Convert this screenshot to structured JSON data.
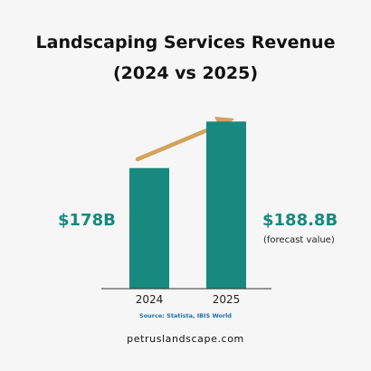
{
  "title_line1": "Landscaping Services Revenue",
  "title_line2": "(2024 vs 2025)",
  "left_value_label": "$178B",
  "right_value_label": "$188.8B",
  "right_value_note": "(forecast value)",
  "source_text": "Source: Statista, IBIS World",
  "website_text": "petruslandscape.com",
  "colors": {
    "bar": "#17897e",
    "value_text": "#17897e",
    "arrow": "#d3a25b",
    "axis": "#333333",
    "source_text": "#1b6fa6"
  },
  "icons": {
    "trend_arrow": "arrow-up-right-icon"
  },
  "chart_data": {
    "type": "bar",
    "title": "Landscaping Services Revenue (2024 vs 2025)",
    "categories": [
      "2024",
      "2025"
    ],
    "values": [
      178,
      188.8
    ],
    "value_labels": [
      "$178B",
      "$188.8B"
    ],
    "annotations": [
      "(forecast value)"
    ],
    "xlabel": "",
    "ylabel": "",
    "unit": "$B",
    "grid": false,
    "legend": "none",
    "trend_arrow": "up"
  }
}
